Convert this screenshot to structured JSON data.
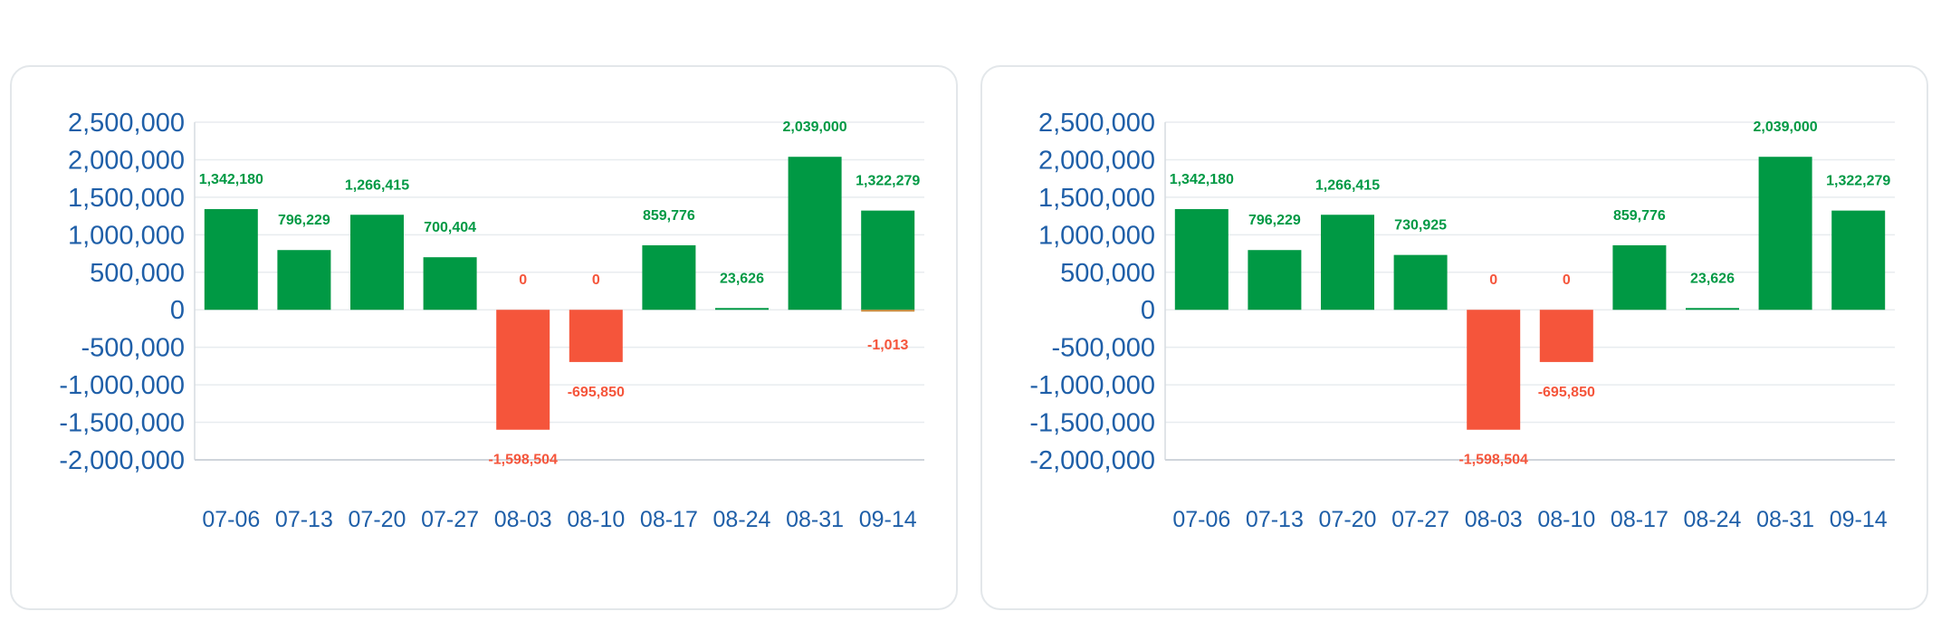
{
  "colors": {
    "positive": "#009944",
    "negative": "#f5553b",
    "axis_text": "#1f5fa8",
    "grid": "#e8ecef",
    "panel_border": "#e3e7ea"
  },
  "chart_data": [
    {
      "type": "bar",
      "categories": [
        "07-06",
        "07-13",
        "07-20",
        "07-27",
        "08-03",
        "08-10",
        "08-17",
        "08-24",
        "08-31",
        "09-14"
      ],
      "values": [
        1342180,
        796229,
        1266415,
        700404,
        -1598504,
        -695850,
        859776,
        23626,
        2039000,
        1322279
      ],
      "labels": [
        "1,342,180",
        "796,229",
        "1,266,415",
        "700,404",
        "-1,598,504",
        "-695,850",
        "859,776",
        "23,626",
        "2,039,000",
        "1,322,279"
      ],
      "zero_labels": [
        "",
        "",
        "",
        "",
        "0",
        "0",
        "",
        "",
        "",
        ""
      ],
      "secondary_values": [
        null,
        null,
        null,
        null,
        null,
        null,
        null,
        null,
        null,
        -1013
      ],
      "secondary_labels": [
        "",
        "",
        "",
        "",
        "",
        "",
        "",
        "",
        "",
        "-1,013"
      ],
      "yticks": [
        2500000,
        2000000,
        1500000,
        1000000,
        500000,
        0,
        -500000,
        -1000000,
        -1500000,
        -2000000
      ],
      "ytick_labels": [
        "2,500,000",
        "2,000,000",
        "1,500,000",
        "1,000,000",
        "500,000",
        "0",
        "-500,000",
        "-1,000,000",
        "-1,500,000",
        "-2,000,000"
      ],
      "ylim": [
        -2000000,
        2500000
      ],
      "grid": true,
      "legend": "none",
      "title": "",
      "xlabel": "",
      "ylabel": ""
    },
    {
      "type": "bar",
      "categories": [
        "07-06",
        "07-13",
        "07-20",
        "07-27",
        "08-03",
        "08-10",
        "08-17",
        "08-24",
        "08-31",
        "09-14"
      ],
      "values": [
        1342180,
        796229,
        1266415,
        730925,
        -1598504,
        -695850,
        859776,
        23626,
        2039000,
        1322279
      ],
      "labels": [
        "1,342,180",
        "796,229",
        "1,266,415",
        "730,925",
        "-1,598,504",
        "-695,850",
        "859,776",
        "23,626",
        "2,039,000",
        "1,322,279"
      ],
      "zero_labels": [
        "",
        "",
        "",
        "",
        "0",
        "0",
        "",
        "",
        "",
        ""
      ],
      "secondary_values": [
        null,
        null,
        null,
        null,
        null,
        null,
        null,
        null,
        null,
        null
      ],
      "secondary_labels": [
        "",
        "",
        "",
        "",
        "",
        "",
        "",
        "",
        "",
        ""
      ],
      "yticks": [
        2500000,
        2000000,
        1500000,
        1000000,
        500000,
        0,
        -500000,
        -1000000,
        -1500000,
        -2000000
      ],
      "ytick_labels": [
        "2,500,000",
        "2,000,000",
        "1,500,000",
        "1,000,000",
        "500,000",
        "0",
        "-500,000",
        "-1,000,000",
        "-1,500,000",
        "-2,000,000"
      ],
      "ylim": [
        -2000000,
        2500000
      ],
      "grid": true,
      "legend": "none",
      "title": "",
      "xlabel": "",
      "ylabel": ""
    }
  ]
}
